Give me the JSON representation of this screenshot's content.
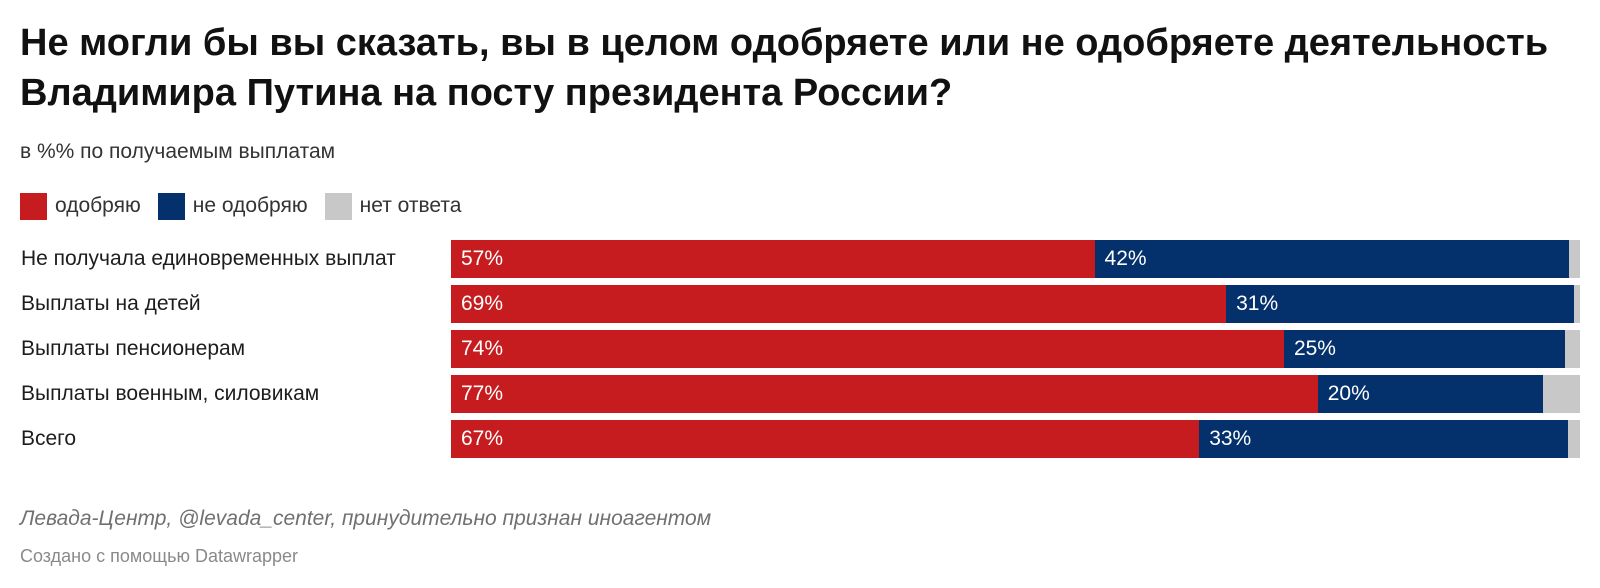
{
  "header": {
    "title": "Не могли бы вы сказать, вы в целом одобряете или не одобряете деятельность Владимира Путина на посту президента России?",
    "subtitle": "в %% по получаемым выплатам"
  },
  "legend": [
    {
      "label": "одобряю",
      "color": "#c71c1f"
    },
    {
      "label": "не одобряю",
      "color": "#04306b"
    },
    {
      "label": "нет ответа",
      "color": "#c8c8c8"
    }
  ],
  "chart_data": {
    "type": "bar",
    "orientation": "horizontal",
    "stacked": true,
    "categories": [
      "Не получала единовременных выплат",
      "Выплаты на детей",
      "Выплаты пенсионерам",
      "Выплаты военным, силовикам",
      "Всего"
    ],
    "series": [
      {
        "name": "одобряю",
        "color": "#c71c1f",
        "values": [
          57,
          69,
          74,
          77,
          67
        ],
        "labels": [
          "57%",
          "69%",
          "74%",
          "77%",
          "67%"
        ]
      },
      {
        "name": "не одобряю",
        "color": "#04306b",
        "values": [
          42,
          31,
          25,
          20,
          33
        ],
        "labels": [
          "42%",
          "31%",
          "25%",
          "20%",
          "33%"
        ]
      },
      {
        "name": "нет ответа",
        "color": "#c8c8c8",
        "values": [
          1,
          0.5,
          1.3,
          3.3,
          1.1
        ],
        "labels": [
          "",
          "",
          "",
          "",
          ""
        ]
      }
    ],
    "xlim": [
      0,
      100
    ]
  },
  "footer": {
    "source": "Левада-Центр, @levada_center, принудительно признан иноагентом",
    "credit": "Создано с помощью Datawrapper"
  }
}
